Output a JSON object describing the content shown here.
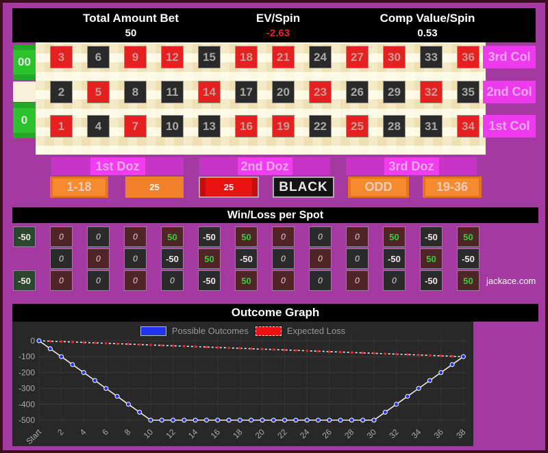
{
  "header": {
    "stats": [
      {
        "label": "Total Amount Bet",
        "value": "50",
        "value_color": "#ffffff"
      },
      {
        "label": "EV/Spin",
        "value": "-2.63",
        "value_color": "#ee2222"
      },
      {
        "label": "Comp Value/Spin",
        "value": "0.53",
        "value_color": "#ffffff"
      }
    ]
  },
  "table": {
    "zeros": [
      {
        "label": "00"
      },
      {
        "label": "0"
      }
    ],
    "rows": [
      [
        {
          "n": "3",
          "c": "red"
        },
        {
          "n": "6",
          "c": "black"
        },
        {
          "n": "9",
          "c": "red"
        },
        {
          "n": "12",
          "c": "red"
        },
        {
          "n": "15",
          "c": "black"
        },
        {
          "n": "18",
          "c": "red"
        },
        {
          "n": "21",
          "c": "red"
        },
        {
          "n": "24",
          "c": "black"
        },
        {
          "n": "27",
          "c": "red"
        },
        {
          "n": "30",
          "c": "red"
        },
        {
          "n": "33",
          "c": "black"
        },
        {
          "n": "36",
          "c": "red"
        }
      ],
      [
        {
          "n": "2",
          "c": "black"
        },
        {
          "n": "5",
          "c": "red"
        },
        {
          "n": "8",
          "c": "black"
        },
        {
          "n": "11",
          "c": "black"
        },
        {
          "n": "14",
          "c": "red"
        },
        {
          "n": "17",
          "c": "black"
        },
        {
          "n": "20",
          "c": "black"
        },
        {
          "n": "23",
          "c": "red"
        },
        {
          "n": "26",
          "c": "black"
        },
        {
          "n": "29",
          "c": "black"
        },
        {
          "n": "32",
          "c": "red"
        },
        {
          "n": "35",
          "c": "black"
        }
      ],
      [
        {
          "n": "1",
          "c": "red"
        },
        {
          "n": "4",
          "c": "black"
        },
        {
          "n": "7",
          "c": "red"
        },
        {
          "n": "10",
          "c": "black"
        },
        {
          "n": "13",
          "c": "black"
        },
        {
          "n": "16",
          "c": "red"
        },
        {
          "n": "19",
          "c": "red"
        },
        {
          "n": "22",
          "c": "black"
        },
        {
          "n": "25",
          "c": "red"
        },
        {
          "n": "28",
          "c": "black"
        },
        {
          "n": "31",
          "c": "black"
        },
        {
          "n": "34",
          "c": "red"
        }
      ]
    ],
    "col_buttons": [
      "3rd Col",
      "2nd Col",
      "1st Col"
    ],
    "dozens": [
      "1st Doz",
      "2nd Doz",
      "3rd Doz"
    ],
    "bets": [
      {
        "label": "1-18",
        "style": "orange"
      },
      {
        "label": "25",
        "style": "orange-flat"
      },
      {
        "label": "25",
        "style": "red"
      },
      {
        "label": "BLACK",
        "style": "black"
      },
      {
        "label": "ODD",
        "style": "orange"
      },
      {
        "label": "19-36",
        "style": "orange"
      }
    ]
  },
  "winloss": {
    "title": "Win/Loss per Spot",
    "zero_cells": [
      {
        "v": "-50",
        "bg": "green"
      },
      {
        "v": "-50",
        "bg": "green"
      }
    ],
    "rows": [
      [
        {
          "v": "0",
          "bg": "red"
        },
        {
          "v": "0",
          "bg": "black"
        },
        {
          "v": "0",
          "bg": "red"
        },
        {
          "v": "50",
          "bg": "red"
        },
        {
          "v": "-50",
          "bg": "black"
        },
        {
          "v": "50",
          "bg": "red"
        },
        {
          "v": "0",
          "bg": "red"
        },
        {
          "v": "0",
          "bg": "black"
        },
        {
          "v": "0",
          "bg": "red"
        },
        {
          "v": "50",
          "bg": "red"
        },
        {
          "v": "-50",
          "bg": "black"
        },
        {
          "v": "50",
          "bg": "red"
        }
      ],
      [
        {
          "v": "0",
          "bg": "black"
        },
        {
          "v": "0",
          "bg": "red"
        },
        {
          "v": "0",
          "bg": "black"
        },
        {
          "v": "-50",
          "bg": "black"
        },
        {
          "v": "50",
          "bg": "red"
        },
        {
          "v": "-50",
          "bg": "black"
        },
        {
          "v": "0",
          "bg": "black"
        },
        {
          "v": "0",
          "bg": "red"
        },
        {
          "v": "0",
          "bg": "black"
        },
        {
          "v": "-50",
          "bg": "black"
        },
        {
          "v": "50",
          "bg": "red"
        },
        {
          "v": "-50",
          "bg": "black"
        }
      ],
      [
        {
          "v": "0",
          "bg": "red"
        },
        {
          "v": "0",
          "bg": "black"
        },
        {
          "v": "0",
          "bg": "red"
        },
        {
          "v": "0",
          "bg": "black"
        },
        {
          "v": "-50",
          "bg": "black"
        },
        {
          "v": "50",
          "bg": "red"
        },
        {
          "v": "0",
          "bg": "red"
        },
        {
          "v": "0",
          "bg": "black"
        },
        {
          "v": "0",
          "bg": "red"
        },
        {
          "v": "0",
          "bg": "black"
        },
        {
          "v": "-50",
          "bg": "black"
        },
        {
          "v": "50",
          "bg": "red"
        }
      ]
    ],
    "brand": "jackace.com"
  },
  "chart_data": {
    "type": "line",
    "title": "Outcome Graph",
    "xlabel": "",
    "ylabel": "",
    "ylim": [
      -500,
      0
    ],
    "y_ticks": [
      0,
      -100,
      -200,
      -300,
      -400,
      -500
    ],
    "grid": true,
    "legend_position": "top-center",
    "x_ticks": [
      {
        "i": 0,
        "label": "Start"
      },
      {
        "i": 2,
        "label": "2"
      },
      {
        "i": 4,
        "label": "4"
      },
      {
        "i": 6,
        "label": "6"
      },
      {
        "i": 8,
        "label": "8"
      },
      {
        "i": 10,
        "label": "10"
      },
      {
        "i": 12,
        "label": "12"
      },
      {
        "i": 14,
        "label": "14"
      },
      {
        "i": 16,
        "label": "16"
      },
      {
        "i": 18,
        "label": "18"
      },
      {
        "i": 20,
        "label": "20"
      },
      {
        "i": 22,
        "label": "22"
      },
      {
        "i": 24,
        "label": "24"
      },
      {
        "i": 26,
        "label": "26"
      },
      {
        "i": 28,
        "label": "28"
      },
      {
        "i": 30,
        "label": "30"
      },
      {
        "i": 32,
        "label": "32"
      },
      {
        "i": 34,
        "label": "34"
      },
      {
        "i": 36,
        "label": "36"
      },
      {
        "i": 38,
        "label": "38"
      }
    ],
    "series": [
      {
        "name": "Possible Outcomes",
        "style": "solid",
        "line_color": "#ebebeb",
        "marker_color": "#2233ee",
        "values": [
          0,
          -50,
          -100,
          -150,
          -200,
          -250,
          -300,
          -350,
          -400,
          -450,
          -500,
          -500,
          -500,
          -500,
          -500,
          -500,
          -500,
          -500,
          -500,
          -500,
          -500,
          -500,
          -500,
          -500,
          -500,
          -500,
          -500,
          -500,
          -500,
          -500,
          -500,
          -450,
          -400,
          -350,
          -300,
          -250,
          -200,
          -150,
          -100
        ]
      },
      {
        "name": "Expected Loss",
        "style": "dashed",
        "line_color": "#efe6e6",
        "marker_color": "#ee2222",
        "values": [
          0,
          -2.63,
          -5.26,
          -7.89,
          -10.52,
          -13.15,
          -15.78,
          -18.41,
          -21.04,
          -23.67,
          -26.3,
          -28.93,
          -31.56,
          -34.19,
          -36.82,
          -39.45,
          -42.08,
          -44.71,
          -47.34,
          -49.97,
          -52.6,
          -55.23,
          -57.86,
          -60.49,
          -63.12,
          -65.75,
          -68.38,
          -71.01,
          -73.64,
          -76.27,
          -78.9,
          -81.53,
          -84.16,
          -86.79,
          -89.42,
          -92.05,
          -94.68,
          -97.31,
          -99.94
        ]
      }
    ]
  },
  "colors": {
    "background_purple": "#a339a1",
    "negative_red": "#ee2222",
    "win_green": "#2fd32f",
    "roulette_red": "#e42020",
    "roulette_black": "#2a2a2a",
    "roulette_green": "#2dc22d",
    "magenta_button": "#ee3aee",
    "orange_button": "#e8721f",
    "outcome_blue": "#2233ee"
  }
}
